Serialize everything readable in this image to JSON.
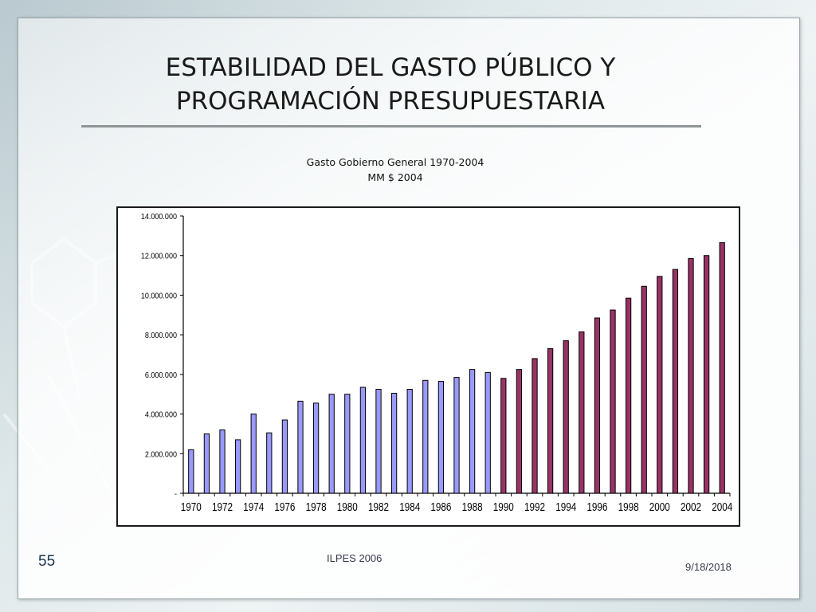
{
  "slide": {
    "title_line1": "ESTABILIDAD DEL GASTO PÚBLICO Y",
    "title_line2": "PROGRAMACIÓN PRESUPUESTARIA",
    "page_number": "55",
    "footer_text": "ILPES 2006",
    "date": "9/18/2018"
  },
  "colors": {
    "series_early": "#9999ff",
    "series_late": "#993366"
  },
  "chart_data": {
    "type": "bar",
    "title": "Gasto Gobierno General 1970-2004",
    "subtitle": "MM $ 2004",
    "xlabel": "",
    "ylabel": "",
    "ylim": [
      0,
      14000000
    ],
    "grid": false,
    "y_ticks": [
      0,
      2000000,
      4000000,
      6000000,
      8000000,
      10000000,
      12000000,
      14000000
    ],
    "y_tick_labels": [
      "-",
      "2.000.000",
      "4.000.000",
      "6.000.000",
      "8.000.000",
      "10.000.000",
      "12.000.000",
      "14.000.000"
    ],
    "categories": [
      "1970",
      "1971",
      "1972",
      "1973",
      "1974",
      "1975",
      "1976",
      "1977",
      "1978",
      "1979",
      "1980",
      "1981",
      "1982",
      "1983",
      "1984",
      "1985",
      "1986",
      "1987",
      "1988",
      "1989",
      "1990",
      "1991",
      "1992",
      "1993",
      "1994",
      "1995",
      "1996",
      "1997",
      "1998",
      "1999",
      "2000",
      "2001",
      "2002",
      "2003",
      "2004"
    ],
    "x_tick_labels": [
      "1970",
      "1972",
      "1974",
      "1976",
      "1978",
      "1980",
      "1982",
      "1984",
      "1986",
      "1988",
      "1990",
      "1992",
      "1994",
      "1996",
      "1998",
      "2000",
      "2002",
      "2004"
    ],
    "values": [
      2200000,
      3000000,
      3200000,
      2700000,
      4000000,
      3050000,
      3700000,
      4650000,
      4550000,
      5000000,
      5000000,
      5350000,
      5250000,
      5050000,
      5250000,
      5700000,
      5650000,
      5850000,
      6250000,
      6100000,
      5800000,
      6250000,
      6800000,
      7300000,
      7700000,
      8150000,
      8850000,
      9250000,
      9850000,
      10450000,
      10950000,
      11300000,
      11850000,
      12000000,
      12650000
    ],
    "color_split_index": 20
  }
}
